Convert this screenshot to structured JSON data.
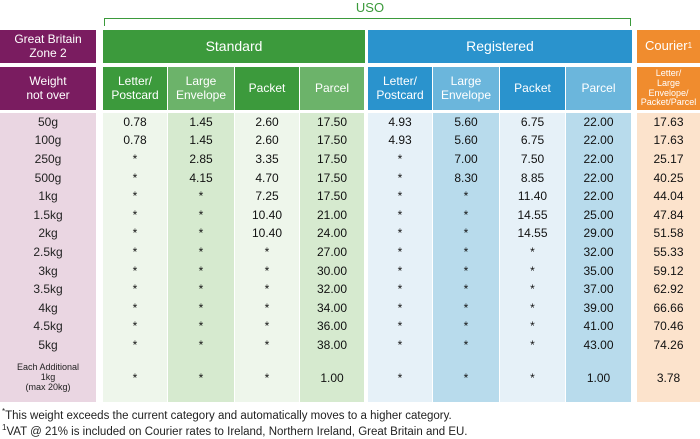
{
  "uso_label": "USO",
  "header": {
    "zone": "Great Britain\nZone 2",
    "standard": "Standard",
    "registered": "Registered",
    "courier": "Courier",
    "courier_sup": "1"
  },
  "subheader": {
    "row_label": "Weight\nnot over",
    "standard": [
      "Letter/\nPostcard",
      "Large\nEnvelope",
      "Packet",
      "Parcel"
    ],
    "registered": [
      "Letter/\nPostcard",
      "Large\nEnvelope",
      "Packet",
      "Parcel"
    ],
    "courier": "Letter/\nLarge\nEnvelope/\nPacket/Parcel"
  },
  "rows": [
    {
      "label": "50g",
      "values": [
        "0.78",
        "1.45",
        "2.60",
        "17.50",
        "4.93",
        "5.60",
        "6.75",
        "22.00",
        "17.63"
      ]
    },
    {
      "label": "100g",
      "values": [
        "0.78",
        "1.45",
        "2.60",
        "17.50",
        "4.93",
        "5.60",
        "6.75",
        "22.00",
        "17.63"
      ]
    },
    {
      "label": "250g",
      "values": [
        "*",
        "2.85",
        "3.35",
        "17.50",
        "*",
        "7.00",
        "7.50",
        "22.00",
        "25.17"
      ]
    },
    {
      "label": "500g",
      "values": [
        "*",
        "4.15",
        "4.70",
        "17.50",
        "*",
        "8.30",
        "8.85",
        "22.00",
        "40.25"
      ]
    },
    {
      "label": "1kg",
      "values": [
        "*",
        "*",
        "7.25",
        "17.50",
        "*",
        "*",
        "11.40",
        "22.00",
        "44.04"
      ]
    },
    {
      "label": "1.5kg",
      "values": [
        "*",
        "*",
        "10.40",
        "21.00",
        "*",
        "*",
        "14.55",
        "25.00",
        "47.84"
      ]
    },
    {
      "label": "2kg",
      "values": [
        "*",
        "*",
        "10.40",
        "24.00",
        "*",
        "*",
        "14.55",
        "29.00",
        "51.58"
      ]
    },
    {
      "label": "2.5kg",
      "values": [
        "*",
        "*",
        "*",
        "27.00",
        "*",
        "*",
        "*",
        "32.00",
        "55.33"
      ]
    },
    {
      "label": "3kg",
      "values": [
        "*",
        "*",
        "*",
        "30.00",
        "*",
        "*",
        "*",
        "35.00",
        "59.12"
      ]
    },
    {
      "label": "3.5kg",
      "values": [
        "*",
        "*",
        "*",
        "32.00",
        "*",
        "*",
        "*",
        "37.00",
        "62.92"
      ]
    },
    {
      "label": "4kg",
      "values": [
        "*",
        "*",
        "*",
        "34.00",
        "*",
        "*",
        "*",
        "39.00",
        "66.66"
      ]
    },
    {
      "label": "4.5kg",
      "values": [
        "*",
        "*",
        "*",
        "36.00",
        "*",
        "*",
        "*",
        "41.00",
        "70.46"
      ]
    },
    {
      "label": "5kg",
      "values": [
        "*",
        "*",
        "*",
        "38.00",
        "*",
        "*",
        "*",
        "43.00",
        "74.26"
      ]
    },
    {
      "label": "Each Additional\n1kg\n(max 20kg)",
      "values": [
        "*",
        "*",
        "*",
        "1.00",
        "*",
        "*",
        "*",
        "1.00",
        "3.78"
      ]
    }
  ],
  "footnotes": [
    {
      "marker": "*",
      "text": "This weight exceeds the current category and automatically moves to a higher category."
    },
    {
      "marker": "1",
      "text": "VAT @ 21% is included on Courier rates to Ireland, Northern Ireland, Great Britain and EU."
    }
  ]
}
